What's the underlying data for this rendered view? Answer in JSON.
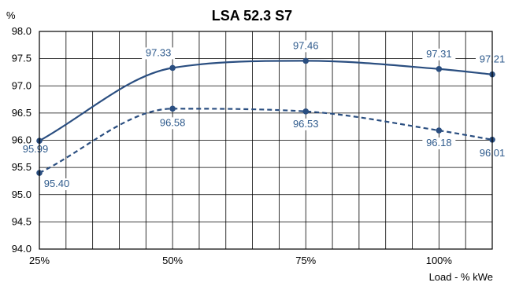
{
  "chart_data": {
    "type": "line",
    "title": "LSA 52.3 S7",
    "ylabel": "%",
    "xlabel": "Load - % kWe",
    "x_ticks": [
      {
        "value": 25,
        "label": "25%"
      },
      {
        "value": 50,
        "label": "50%"
      },
      {
        "value": 75,
        "label": "75%"
      },
      {
        "value": 100,
        "label": "100%"
      }
    ],
    "xlim": [
      25,
      110
    ],
    "ylim": [
      94.0,
      98.0
    ],
    "y_ticks": [
      "94.0",
      "94.5",
      "95.0",
      "95.5",
      "96.0",
      "96.5",
      "97.0",
      "97.5",
      "98.0"
    ],
    "grid": true,
    "x_grid_step": 5,
    "colors": {
      "series": "#2a4e80",
      "labels": "#2e5a8c"
    },
    "series": [
      {
        "style": "solid",
        "points": [
          {
            "x": 25,
            "y": 95.99,
            "label": "95.99"
          },
          {
            "x": 50,
            "y": 97.33,
            "label": "97.33"
          },
          {
            "x": 75,
            "y": 97.46,
            "label": "97.46"
          },
          {
            "x": 100,
            "y": 97.31,
            "label": "97.31"
          },
          {
            "x": 110,
            "y": 97.21,
            "label": "97.21"
          }
        ]
      },
      {
        "style": "dashed",
        "points": [
          {
            "x": 25,
            "y": 95.4,
            "label": "95.40"
          },
          {
            "x": 50,
            "y": 96.58,
            "label": "96.58"
          },
          {
            "x": 75,
            "y": 96.53,
            "label": "96.53"
          },
          {
            "x": 100,
            "y": 96.18,
            "label": "96.18"
          },
          {
            "x": 110,
            "y": 96.01,
            "label": "96.01"
          }
        ]
      }
    ]
  }
}
